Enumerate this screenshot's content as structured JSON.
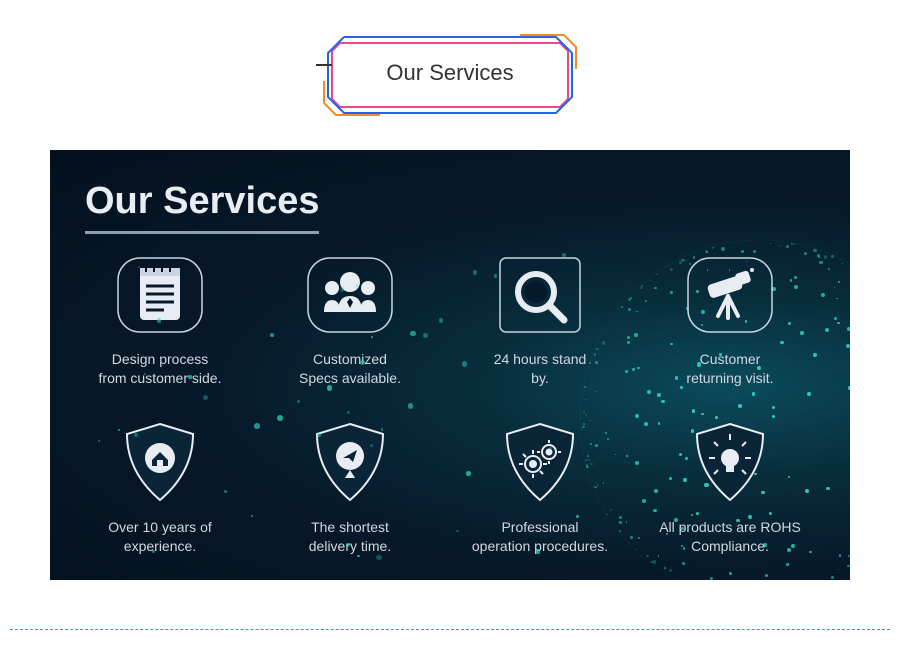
{
  "top_title": "Our Services",
  "banner_title": "Our Services",
  "colors": {
    "banner_bg_inner": "#0b4b5b",
    "banner_bg_outer": "#04101e",
    "title_color": "#e8edf3",
    "label_color": "#d0d8e2",
    "outline": "#c8d4e0",
    "accent": "#2fd6c4",
    "divider": "#2d9ad6",
    "frame_blue": "#2563eb",
    "frame_pink": "#e84a8f",
    "frame_orange": "#f28c28"
  },
  "typography": {
    "top_title_size": 22,
    "banner_title_size": 38,
    "label_size": 14
  },
  "row1": [
    {
      "icon": "notepad",
      "shape": "rounded-square",
      "line1": "Design process",
      "line2": "from customer side."
    },
    {
      "icon": "people",
      "shape": "rounded-square",
      "line1": "Customized",
      "line2": "Specs available."
    },
    {
      "icon": "magnifier",
      "shape": "square",
      "line1": "24 hours stand",
      "line2": "by."
    },
    {
      "icon": "telescope",
      "shape": "rounded-square",
      "line1": "Customer",
      "line2": "returning visit."
    }
  ],
  "row2": [
    {
      "icon": "home",
      "line1": "Over 10 years of",
      "line2": "experience."
    },
    {
      "icon": "location",
      "line1": "The shortest",
      "line2": "delivery time."
    },
    {
      "icon": "gears",
      "line1": "Professional",
      "line2": "operation procedures."
    },
    {
      "icon": "lightbulb",
      "line1": "All products are ROHS",
      "line2": "Compliance."
    }
  ]
}
